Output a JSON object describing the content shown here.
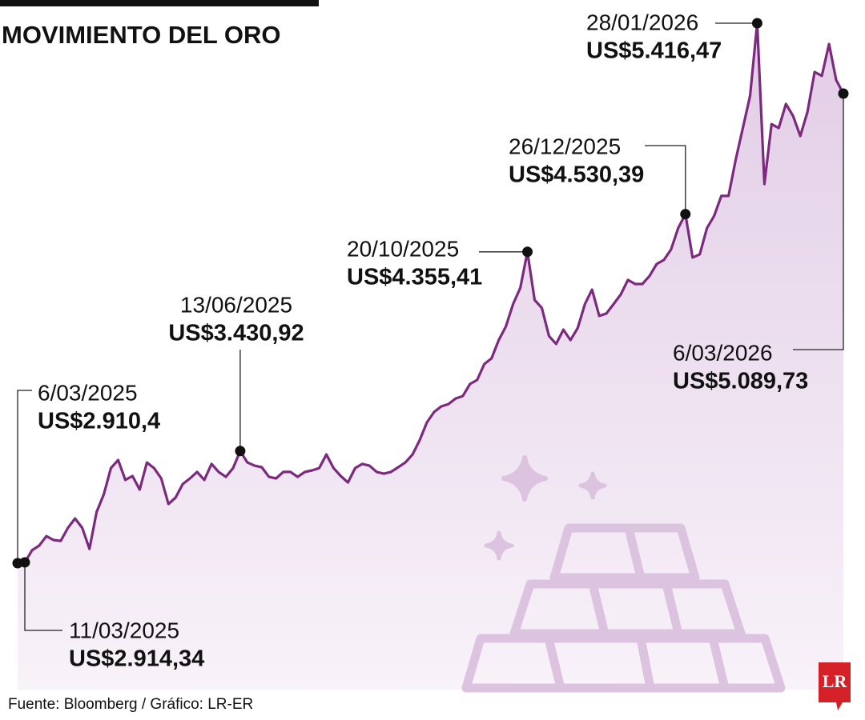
{
  "chart_data": {
    "type": "line",
    "title": "MOVIMIENTO DEL ORO",
    "source": "Fuente: Bloomberg / Gráfico: LR-ER",
    "logo": "LR",
    "color": "#7b2a7e",
    "values": [
      2910.4,
      2914.34,
      2970,
      2992,
      3036,
      3018,
      3014,
      3074,
      3118,
      3074,
      2977,
      3148,
      3230,
      3352,
      3389,
      3297,
      3315,
      3252,
      3378,
      3352,
      3304,
      3185,
      3215,
      3278,
      3304,
      3334,
      3297,
      3371,
      3334,
      3311,
      3352,
      3430.92,
      3378,
      3363,
      3356,
      3311,
      3304,
      3334,
      3334,
      3311,
      3334,
      3341,
      3352,
      3415,
      3352,
      3315,
      3285,
      3352,
      3371,
      3363,
      3334,
      3326,
      3334,
      3356,
      3378,
      3415,
      3482,
      3564,
      3612,
      3638,
      3649,
      3675,
      3686,
      3742,
      3761,
      3835,
      3861,
      3946,
      4009,
      4113,
      4188,
      4355.41,
      4132,
      4095,
      3965,
      3928,
      3994,
      3946,
      4002,
      4113,
      4180,
      4058,
      4069,
      4113,
      4158,
      4225,
      4206,
      4206,
      4243,
      4299,
      4318,
      4366,
      4466,
      4530.39,
      4329,
      4344,
      4466,
      4522,
      4615,
      4615,
      4782,
      4930,
      5079,
      5416.47,
      4670,
      4948,
      4930,
      5042,
      4986,
      4893,
      5005,
      5190,
      5172,
      5320,
      5153,
      5089.73
    ],
    "annotations": [
      {
        "date": "6/03/2025",
        "value": 2910.4,
        "label": "US$2.910,4"
      },
      {
        "date": "11/03/2025",
        "value": 2914.34,
        "label": "US$2.914,34"
      },
      {
        "date": "13/06/2025",
        "value": 3430.92,
        "label": "US$3.430,92"
      },
      {
        "date": "20/10/2025",
        "value": 4355.41,
        "label": "US$4.355,41"
      },
      {
        "date": "26/12/2025",
        "value": 4530.39,
        "label": "US$4.530,39"
      },
      {
        "date": "28/01/2026",
        "value": 5416.47,
        "label": "US$5.416,47"
      },
      {
        "date": "6/03/2026",
        "value": 5089.73,
        "label": "US$5.089,73"
      }
    ]
  }
}
